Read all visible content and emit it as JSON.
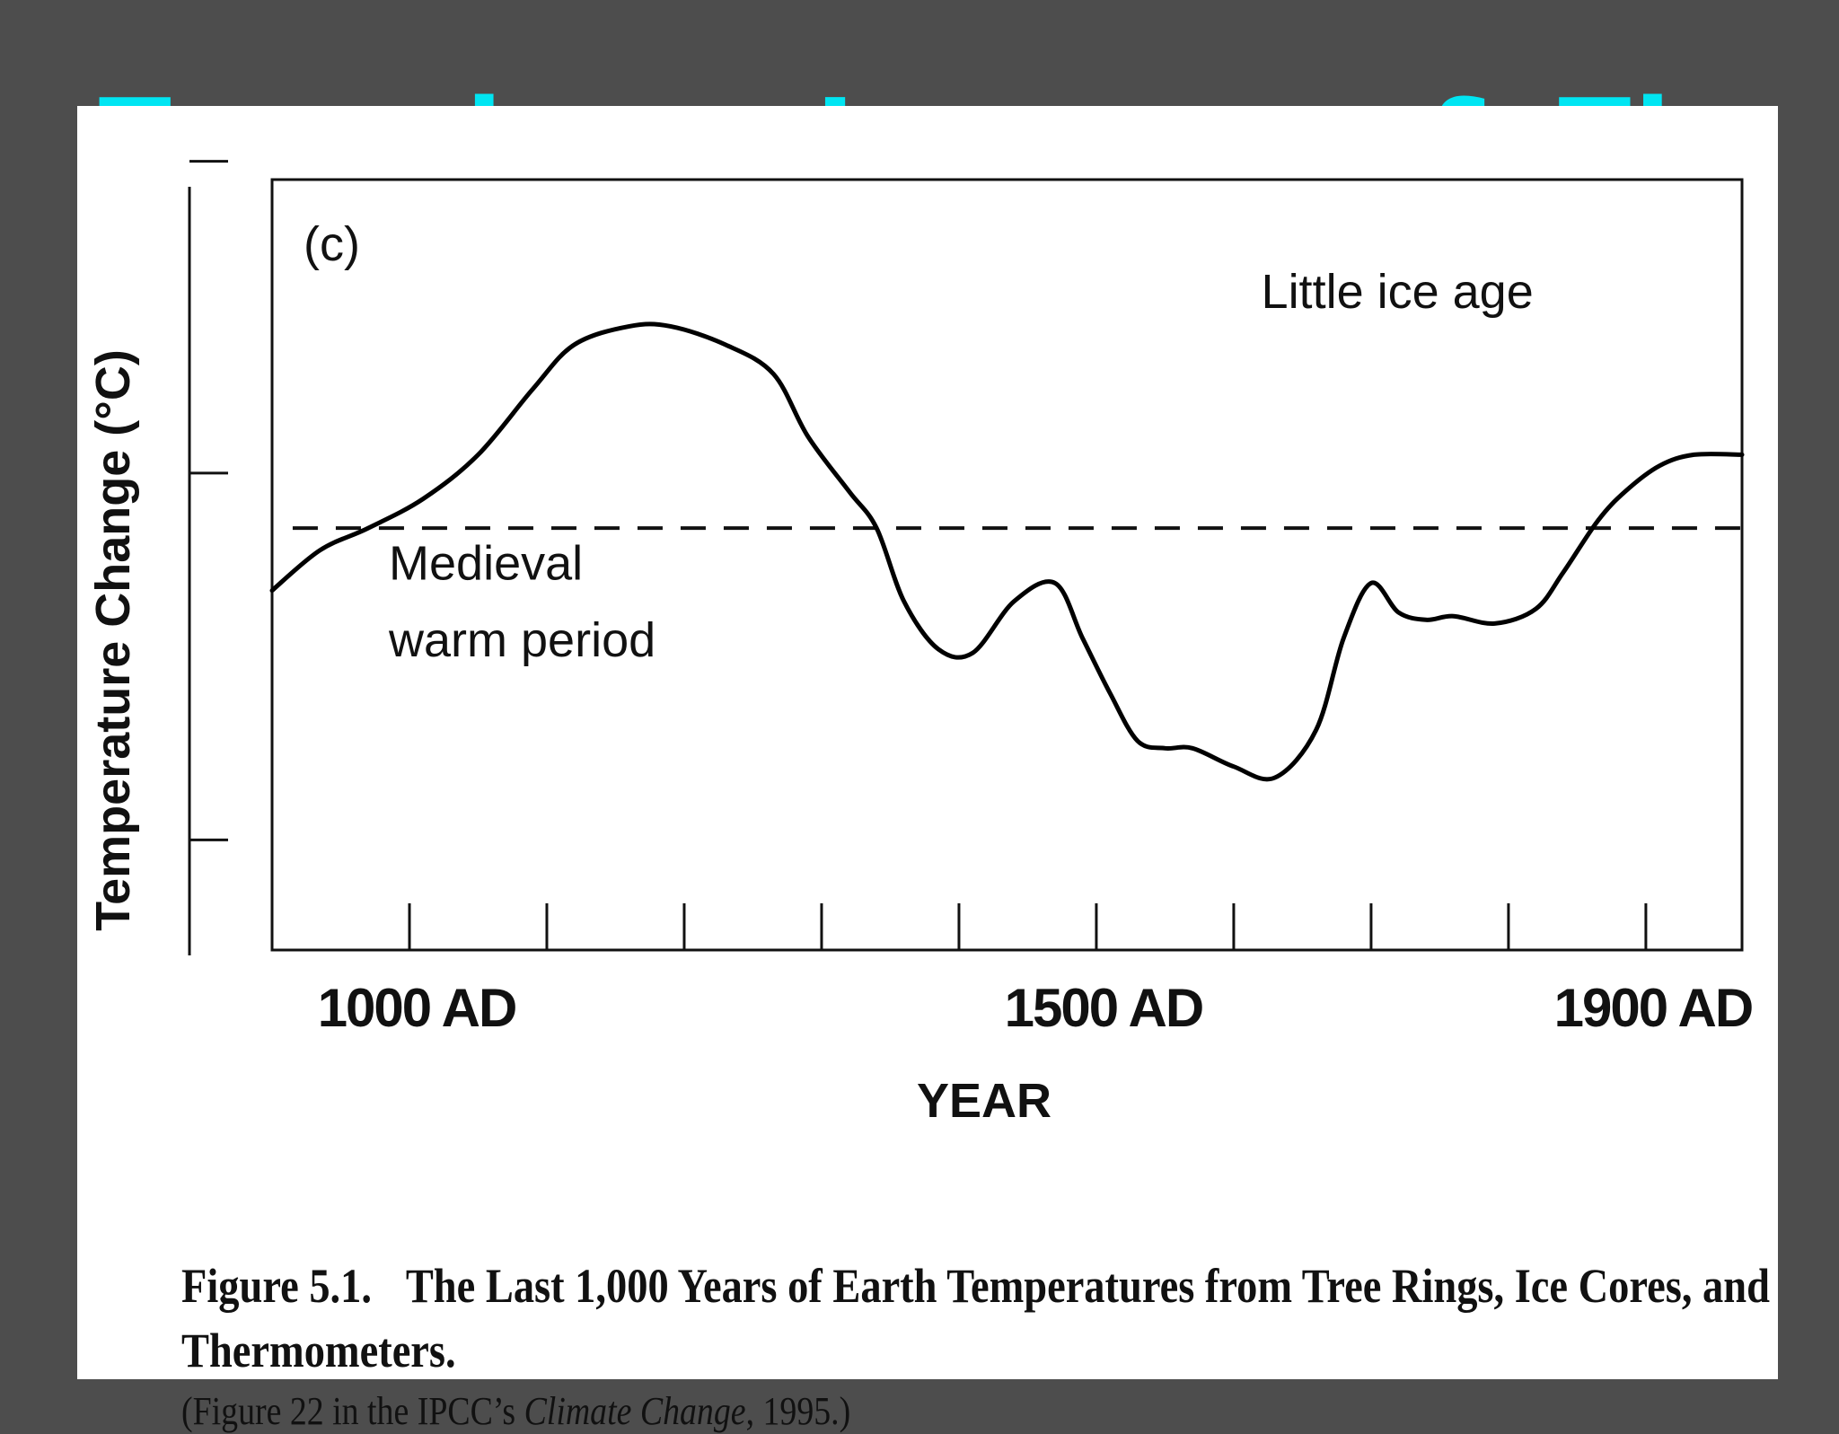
{
  "slide": {
    "title": "Tree rings, Ice cores & Thermometers",
    "title_color": "#00e5f2",
    "background": "#4d4d4d"
  },
  "chart_data": {
    "type": "line",
    "panel_label": "(c)",
    "xlabel": "YEAR",
    "ylabel": "Temperature Change (°C)",
    "x_tick_labels": [
      {
        "year": 1000,
        "label": "1000 AD"
      },
      {
        "year": 1500,
        "label": "1500 AD"
      },
      {
        "year": 1900,
        "label": "1900 AD"
      }
    ],
    "x_minor_ticks": [
      1000,
      1100,
      1200,
      1300,
      1400,
      1500,
      1600,
      1700,
      1800,
      1900
    ],
    "xlim": [
      900,
      1970
    ],
    "ylim": [
      -1.15,
      0.95
    ],
    "y_tick_values": [
      -0.85,
      0.15,
      1.0
    ],
    "reference_line": {
      "y": 0.0,
      "style": "dashed"
    },
    "annotations": [
      {
        "text": "Medieval",
        "x": 985,
        "y": -0.14
      },
      {
        "text": "warm period",
        "x": 985,
        "y": -0.35
      },
      {
        "text": "Little ice age",
        "x": 1620,
        "y": 0.6
      }
    ],
    "series": [
      {
        "color": "#000000",
        "x": [
          900,
          935,
          970,
          1010,
          1050,
          1090,
          1120,
          1160,
          1190,
          1230,
          1265,
          1290,
          1320,
          1340,
          1360,
          1385,
          1410,
          1440,
          1470,
          1490,
          1510,
          1530,
          1550,
          1570,
          1600,
          1630,
          1660,
          1680,
          1700,
          1720,
          1740,
          1760,
          1790,
          1820,
          1840,
          1865,
          1885,
          1910,
          1935,
          1970
        ],
        "y": [
          -0.17,
          -0.06,
          0.0,
          0.08,
          0.2,
          0.38,
          0.5,
          0.55,
          0.55,
          0.5,
          0.42,
          0.25,
          0.1,
          0.0,
          -0.2,
          -0.33,
          -0.34,
          -0.2,
          -0.15,
          -0.3,
          -0.45,
          -0.58,
          -0.6,
          -0.6,
          -0.65,
          -0.68,
          -0.55,
          -0.3,
          -0.15,
          -0.23,
          -0.25,
          -0.24,
          -0.26,
          -0.22,
          -0.12,
          0.02,
          0.1,
          0.17,
          0.2,
          0.2
        ]
      }
    ]
  },
  "caption": {
    "figure_number": "Figure 5.1.",
    "title": "The Last 1,000 Years of Earth Temperatures from Tree Rings, Ice Cores, and Thermometers.",
    "source_prefix": "(Figure 22 in the IPCC’s ",
    "source_italic": "Climate Change",
    "source_suffix": ", 1995.)"
  }
}
